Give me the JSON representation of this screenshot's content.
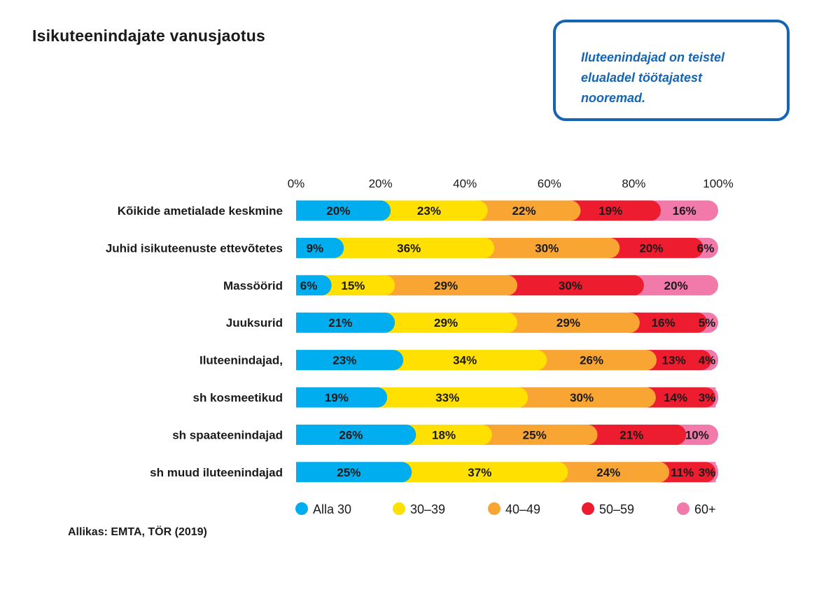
{
  "title": "Isikuteenindajate vanusjaotus",
  "callout": {
    "lines": [
      "Iluteenindajad on teistel",
      "elualadel töötajatest",
      "nooremad."
    ]
  },
  "source": "Allikas: EMTA, TÖR (2019)",
  "chart_data": {
    "type": "bar",
    "orientation": "horizontal",
    "stacked": true,
    "categories": [
      "Kõikide ametialade keskmine",
      "Juhid isikuteenuste ettevõtetes",
      "Massöörid",
      "Juuksurid",
      "Iluteenindajad,",
      "sh kosmeetikud",
      "sh spaateenindajad",
      "sh muud iluteenindajad"
    ],
    "series": [
      {
        "name": "Alla 30",
        "color": "#00aeef",
        "values": [
          20,
          9,
          6,
          21,
          23,
          19,
          26,
          25
        ]
      },
      {
        "name": "30–39",
        "color": "#ffe000",
        "values": [
          23,
          36,
          15,
          29,
          34,
          33,
          18,
          37
        ]
      },
      {
        "name": "40–49",
        "color": "#f9a533",
        "values": [
          22,
          30,
          29,
          29,
          26,
          30,
          25,
          24
        ]
      },
      {
        "name": "50–59",
        "color": "#ed1c2e",
        "values": [
          19,
          20,
          30,
          16,
          13,
          14,
          21,
          11
        ]
      },
      {
        "name": "60+",
        "color": "#f27aab",
        "values": [
          16,
          6,
          20,
          5,
          4,
          3,
          10,
          3
        ]
      }
    ],
    "xlim": [
      0,
      100
    ],
    "xticks": [
      "0%",
      "20%",
      "40%",
      "60%",
      "80%",
      "100%"
    ],
    "xtick_values": [
      0,
      20,
      40,
      60,
      80,
      100
    ],
    "data_label_suffix": "%",
    "axis_position": "top",
    "legend_position": "bottom",
    "grid": false
  }
}
